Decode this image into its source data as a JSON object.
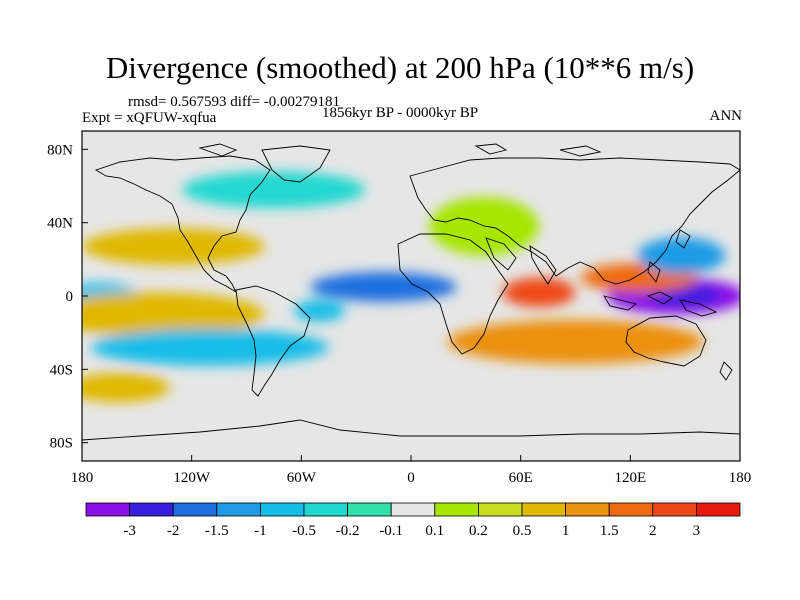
{
  "title": "Divergence (smoothed) at 200 hPa (10**6 m/s)",
  "stats_line": "rmsd= 0.567593 diff= -0.00279181",
  "experiment_line": "Expt = xQFUW-xqfua",
  "period_line": "1856kyr BP - 0000kyr BP",
  "season": "ANN",
  "map": {
    "projection": "cylindrical equidistant",
    "lon_range": [
      -180,
      180
    ],
    "lat_range": [
      -90,
      90
    ],
    "lon_ticks": [
      {
        "value": -180,
        "label": "180"
      },
      {
        "value": -120,
        "label": "120W"
      },
      {
        "value": -60,
        "label": "60W"
      },
      {
        "value": 0,
        "label": "0"
      },
      {
        "value": 60,
        "label": "60E"
      },
      {
        "value": 120,
        "label": "120E"
      },
      {
        "value": 180,
        "label": "180"
      }
    ],
    "lat_ticks": [
      {
        "value": 80,
        "label": "80N"
      },
      {
        "value": 40,
        "label": "40N"
      },
      {
        "value": 0,
        "label": "0"
      },
      {
        "value": -40,
        "label": "40S"
      },
      {
        "value": -80,
        "label": "80S"
      }
    ],
    "field_features": [
      {
        "lon": 145,
        "lat": 0,
        "rx": 38,
        "ry": 10,
        "class": 0
      },
      {
        "lon": 150,
        "lat": 0,
        "rx": 20,
        "ry": 6,
        "class": 1
      },
      {
        "lon": 70,
        "lat": 2,
        "rx": 20,
        "ry": 8,
        "class": 13
      },
      {
        "lon": 125,
        "lat": 10,
        "rx": 32,
        "ry": 8,
        "class": 12
      },
      {
        "lon": 148,
        "lat": 22,
        "rx": 24,
        "ry": 10,
        "class": 3
      },
      {
        "lon": -15,
        "lat": 5,
        "rx": 40,
        "ry": 8,
        "class": 2
      },
      {
        "lon": -50,
        "lat": -8,
        "rx": 14,
        "ry": 6,
        "class": 4
      },
      {
        "lon": -130,
        "lat": 27,
        "rx": 50,
        "ry": 10,
        "class": 10
      },
      {
        "lon": -170,
        "lat": 1,
        "rx": 20,
        "ry": 6,
        "class": 4
      },
      {
        "lon": -140,
        "lat": -10,
        "rx": 60,
        "ry": 12,
        "class": 10
      },
      {
        "lon": -110,
        "lat": -28,
        "rx": 65,
        "ry": 10,
        "class": 4
      },
      {
        "lon": -160,
        "lat": -50,
        "rx": 28,
        "ry": 8,
        "class": 10
      },
      {
        "lon": 90,
        "lat": -25,
        "rx": 70,
        "ry": 12,
        "class": 11
      },
      {
        "lon": 40,
        "lat": 38,
        "rx": 30,
        "ry": 16,
        "class": 8
      },
      {
        "lon": -75,
        "lat": 58,
        "rx": 50,
        "ry": 10,
        "class": 5
      },
      {
        "lon": 20,
        "lat": -63,
        "rx": 20,
        "ry": 8,
        "class": 7
      }
    ],
    "coastline_note": "continental outlines drawn as simplified black lines"
  },
  "colorbar": {
    "colors": [
      "#8a10e8",
      "#3a1ee0",
      "#1f6ee0",
      "#1e9be6",
      "#14bde8",
      "#20d8d0",
      "#30e0a8",
      "#e6e6e6",
      "#a6e600",
      "#c8dc20",
      "#e0b800",
      "#ec9010",
      "#ee6a10",
      "#ee4818",
      "#e81a10"
    ],
    "labels": [
      "-3",
      "-2",
      "-1.5",
      "-1",
      "-0.5",
      "-0.2",
      "-0.1",
      "0.1",
      "0.2",
      "0.5",
      "1",
      "1.5",
      "2",
      "3"
    ]
  }
}
